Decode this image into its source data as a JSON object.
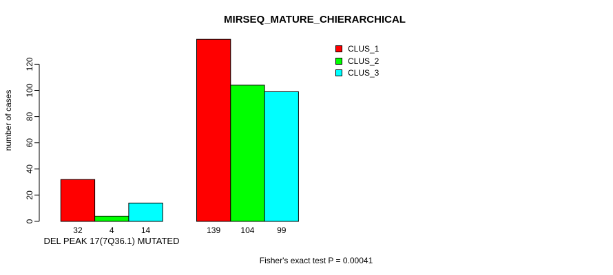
{
  "chart_data": {
    "type": "bar",
    "title": "MIRSEQ_MATURE_CHIERARCHICAL",
    "ylabel": "number of cases",
    "xlabel": "",
    "categories": [
      "DEL PEAK 17(7Q36.1) MUTATED",
      ""
    ],
    "series": [
      {
        "name": "CLUS_1",
        "color": "#ff0000",
        "values": [
          32,
          139
        ]
      },
      {
        "name": "CLUS_2",
        "color": "#00ff00",
        "values": [
          4,
          104
        ]
      },
      {
        "name": "CLUS_3",
        "color": "#00ffff",
        "values": [
          14,
          99
        ]
      }
    ],
    "bar_value_labels": [
      [
        32,
        4,
        14
      ],
      [
        139,
        104,
        99
      ]
    ],
    "yticks": [
      0,
      20,
      40,
      60,
      80,
      100,
      120
    ],
    "ylim": [
      0,
      139
    ],
    "grid": false,
    "legend_position": "top-right",
    "bar_border_color": "#000000",
    "annotation": "Fisher's exact test P = 0.00041"
  }
}
